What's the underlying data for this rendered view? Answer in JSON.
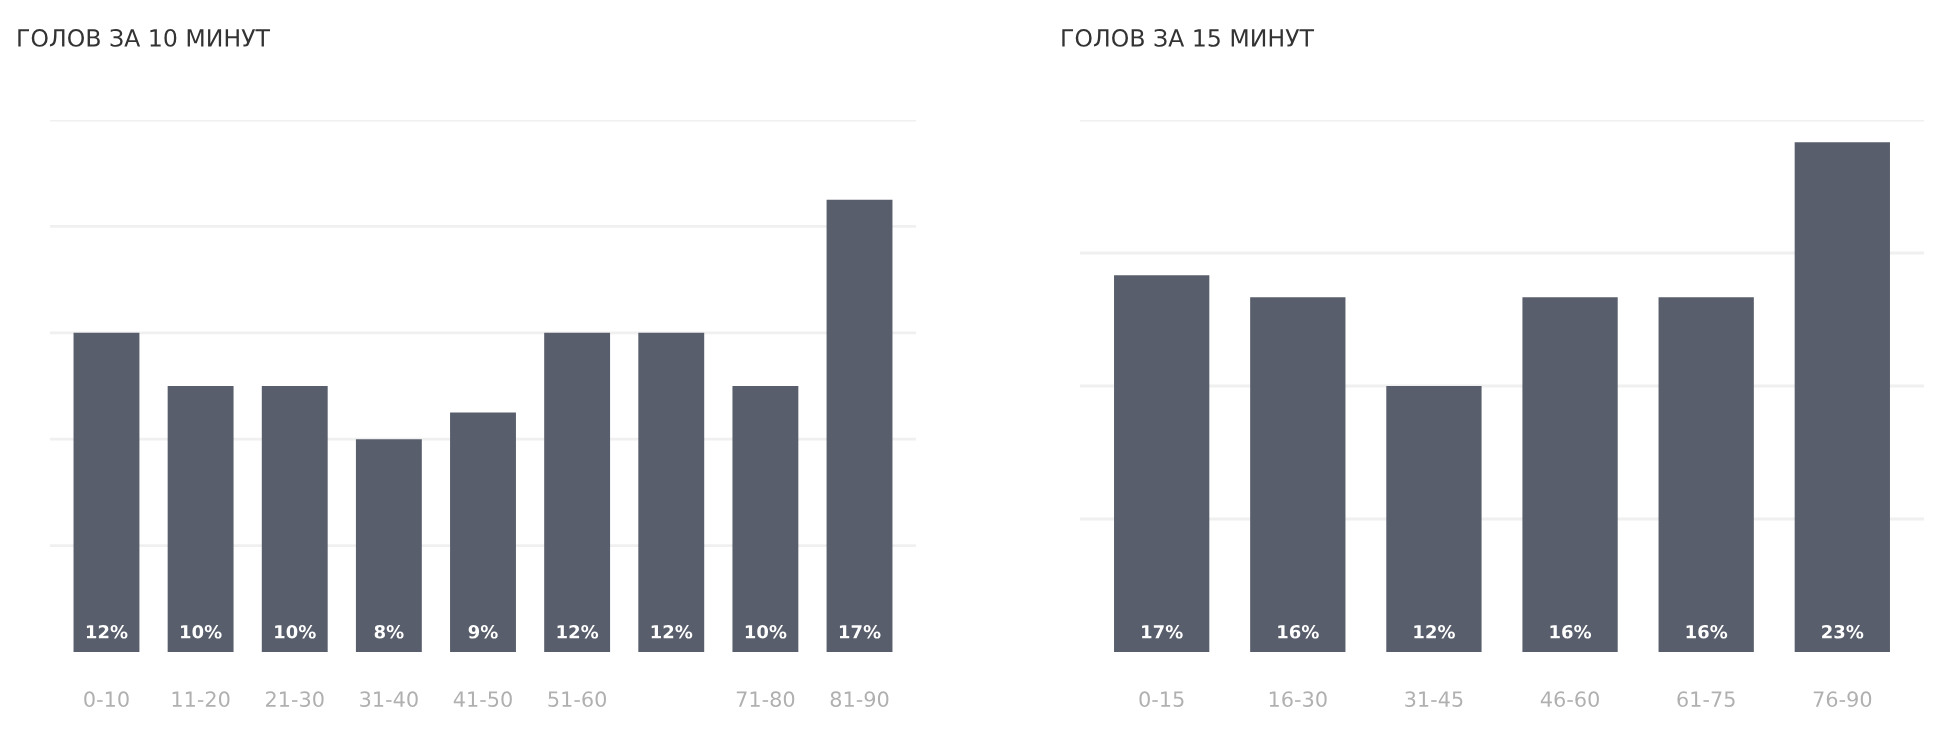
{
  "chart_data": [
    {
      "type": "bar",
      "title": "ГОЛОВ ЗА 10 МИНУТ",
      "categories": [
        "0-10",
        "11-20",
        "21-30",
        "31-40",
        "41-50",
        "51-60",
        null,
        "71-80",
        "81-90"
      ],
      "values": [
        12,
        10,
        10,
        8,
        9,
        12,
        12,
        10,
        17
      ],
      "value_labels": [
        "12%",
        "10%",
        "10%",
        "8%",
        "9%",
        "12%",
        "12%",
        "10%",
        "17%"
      ],
      "color": "#585e6b",
      "ylim": [
        0,
        20
      ],
      "yticks": [
        {
          "value": 4,
          "label": null
        },
        {
          "value": 8,
          "label": null
        },
        {
          "value": 12,
          "label": null
        },
        {
          "value": 16,
          "label": null
        },
        {
          "value": 20,
          "label": null
        }
      ],
      "grid": "y",
      "tick_labels": "x",
      "legend": false
    },
    {
      "type": "bar",
      "title": "ГОЛОВ ЗА 15 МИНУТ",
      "categories": [
        "0-15",
        "16-30",
        "31-45",
        "46-60",
        "61-75",
        "76-90"
      ],
      "values": [
        17,
        16,
        12,
        16,
        16,
        23
      ],
      "value_labels": [
        "17%",
        "16%",
        "12%",
        "16%",
        "16%",
        "23%"
      ],
      "color": "#585e6b",
      "ylim": [
        0,
        24
      ],
      "yticks": [
        {
          "value": 6,
          "label": null
        },
        {
          "value": 12,
          "label": null
        },
        {
          "value": 18,
          "label": null
        },
        {
          "value": 24,
          "label": null
        }
      ],
      "grid": "y",
      "tick_labels": "x",
      "legend": false
    }
  ]
}
